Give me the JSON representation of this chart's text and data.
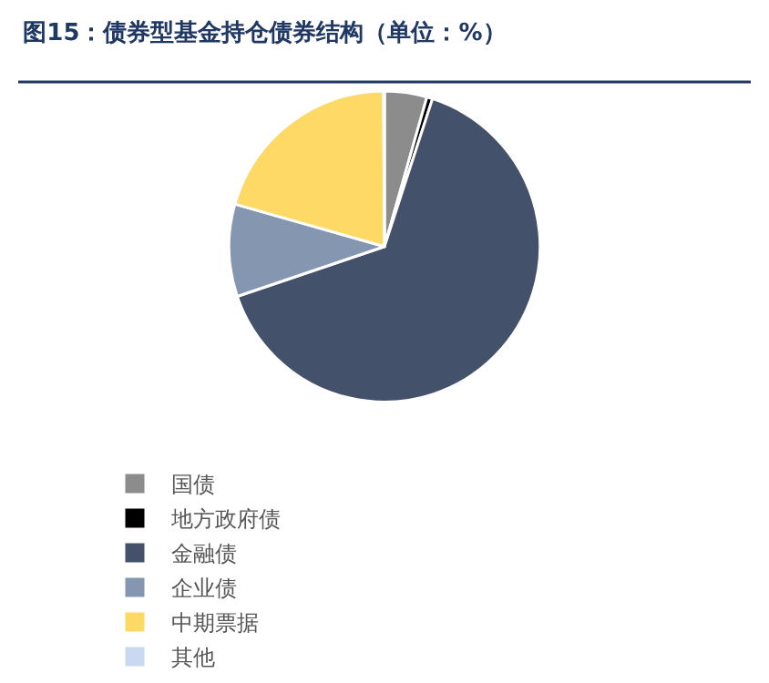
{
  "chart_data": {
    "type": "pie",
    "title": "图15：债券型基金持仓债券结构（单位：%）",
    "categories": [
      "国债",
      "地方政府债",
      "金融债",
      "企业债",
      "中期票据",
      "其他"
    ],
    "values": [
      4.4,
      0.6,
      64.8,
      9.6,
      20.5,
      0.1
    ],
    "colors": [
      "#8c8c8c",
      "#000000",
      "#43516a",
      "#8596b0",
      "#ffd966",
      "#c9daf0"
    ],
    "legend": "bottom"
  }
}
